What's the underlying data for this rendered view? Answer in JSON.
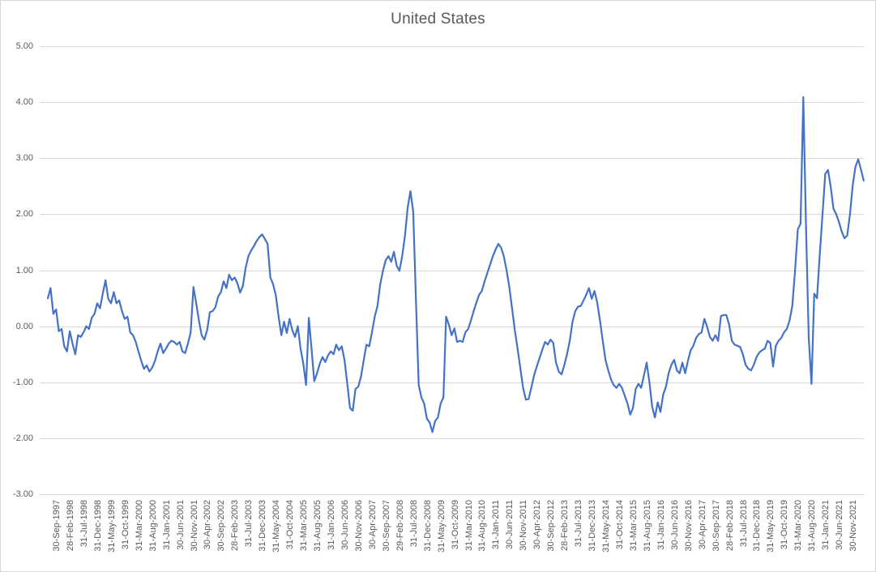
{
  "title": "United States",
  "chart_data": {
    "type": "line",
    "title": "United States",
    "frequency": "monthly",
    "start_month": "Sep-1997",
    "ylim": [
      -3.0,
      5.0
    ],
    "grid": true,
    "legend": "none",
    "line_color": "#4472C4",
    "grid_color": "#D9D9D9",
    "axis_text_color": "#595959",
    "y_ticks": [
      "5.00",
      "4.00",
      "3.00",
      "2.00",
      "1.00",
      "0.00",
      "-1.00",
      "-2.00",
      "-3.00"
    ],
    "y_tick_values": [
      5,
      4,
      3,
      2,
      1,
      0,
      -1,
      -2,
      -3
    ],
    "x_tick_step_months": 5,
    "x_ticks": [
      "30-Sep-1997",
      "28-Feb-1998",
      "31-Jul-1998",
      "31-Dec-1998",
      "31-May-1999",
      "31-Oct-1999",
      "31-Mar-2000",
      "31-Aug-2000",
      "31-Jan-2001",
      "30-Jun-2001",
      "30-Nov-2001",
      "30-Apr-2002",
      "30-Sep-2002",
      "28-Feb-2003",
      "31-Jul-2003",
      "31-Dec-2003",
      "31-May-2004",
      "31-Oct-2004",
      "31-Mar-2005",
      "31-Aug-2005",
      "31-Jan-2006",
      "30-Jun-2006",
      "30-Nov-2006",
      "30-Apr-2007",
      "30-Sep-2007",
      "29-Feb-2008",
      "31-Jul-2008",
      "31-Dec-2008",
      "31-May-2009",
      "31-Oct-2009",
      "31-Mar-2010",
      "31-Aug-2010",
      "31-Jan-2011",
      "30-Jun-2011",
      "30-Nov-2011",
      "30-Apr-2012",
      "30-Sep-2012",
      "28-Feb-2013",
      "31-Jul-2013",
      "31-Dec-2013",
      "31-May-2014",
      "31-Oct-2014",
      "31-Mar-2015",
      "31-Aug-2015",
      "31-Jan-2016",
      "30-Jun-2016",
      "30-Nov-2016",
      "30-Apr-2017",
      "30-Sep-2017",
      "28-Feb-2018",
      "31-Jul-2018",
      "31-Dec-2018",
      "31-May-2019",
      "31-Oct-2019",
      "31-Mar-2020",
      "31-Aug-2020",
      "31-Jan-2021",
      "30-Jun-2021",
      "30-Nov-2021"
    ],
    "values": [
      0.5,
      0.68,
      0.22,
      0.3,
      -0.09,
      -0.05,
      -0.36,
      -0.45,
      -0.09,
      -0.31,
      -0.5,
      -0.16,
      -0.19,
      -0.11,
      0.0,
      -0.05,
      0.15,
      0.22,
      0.41,
      0.32,
      0.58,
      0.82,
      0.49,
      0.41,
      0.61,
      0.41,
      0.46,
      0.27,
      0.13,
      0.17,
      -0.11,
      -0.16,
      -0.28,
      -0.45,
      -0.62,
      -0.76,
      -0.7,
      -0.81,
      -0.74,
      -0.62,
      -0.45,
      -0.31,
      -0.48,
      -0.4,
      -0.31,
      -0.26,
      -0.28,
      -0.33,
      -0.28,
      -0.45,
      -0.48,
      -0.31,
      -0.11,
      0.7,
      0.41,
      0.1,
      -0.16,
      -0.24,
      -0.07,
      0.25,
      0.27,
      0.34,
      0.53,
      0.61,
      0.8,
      0.68,
      0.92,
      0.82,
      0.87,
      0.77,
      0.6,
      0.72,
      1.04,
      1.25,
      1.35,
      1.43,
      1.52,
      1.59,
      1.64,
      1.56,
      1.47,
      0.87,
      0.75,
      0.55,
      0.17,
      -0.16,
      0.08,
      -0.12,
      0.13,
      -0.07,
      -0.19,
      0.0,
      -0.4,
      -0.67,
      -1.05,
      0.15,
      -0.4,
      -0.98,
      -0.84,
      -0.67,
      -0.55,
      -0.64,
      -0.52,
      -0.45,
      -0.5,
      -0.33,
      -0.43,
      -0.36,
      -0.6,
      -1.02,
      -1.46,
      -1.51,
      -1.12,
      -1.08,
      -0.9,
      -0.6,
      -0.33,
      -0.36,
      -0.11,
      0.17,
      0.36,
      0.75,
      0.99,
      1.18,
      1.25,
      1.15,
      1.33,
      1.08,
      0.99,
      1.25,
      1.61,
      2.12,
      2.41,
      2.05,
      0.46,
      -1.05,
      -1.27,
      -1.38,
      -1.65,
      -1.72,
      -1.89,
      -1.69,
      -1.63,
      -1.38,
      -1.27,
      0.17,
      0.03,
      -0.16,
      -0.04,
      -0.28,
      -0.26,
      -0.28,
      -0.11,
      -0.05,
      0.1,
      0.27,
      0.42,
      0.56,
      0.63,
      0.8,
      0.95,
      1.1,
      1.25,
      1.37,
      1.47,
      1.4,
      1.25,
      1.0,
      0.7,
      0.32,
      -0.07,
      -0.4,
      -0.75,
      -1.1,
      -1.31,
      -1.3,
      -1.1,
      -0.88,
      -0.72,
      -0.57,
      -0.42,
      -0.28,
      -0.33,
      -0.24,
      -0.3,
      -0.65,
      -0.81,
      -0.86,
      -0.7,
      -0.5,
      -0.26,
      0.08,
      0.27,
      0.35,
      0.36,
      0.46,
      0.56,
      0.68,
      0.49,
      0.63,
      0.42,
      0.1,
      -0.26,
      -0.6,
      -0.79,
      -0.95,
      -1.05,
      -1.1,
      -1.03,
      -1.1,
      -1.24,
      -1.38,
      -1.58,
      -1.46,
      -1.12,
      -1.03,
      -1.1,
      -0.88,
      -0.65,
      -1.0,
      -1.44,
      -1.63,
      -1.36,
      -1.53,
      -1.22,
      -1.08,
      -0.84,
      -0.69,
      -0.6,
      -0.79,
      -0.84,
      -0.65,
      -0.84,
      -0.62,
      -0.43,
      -0.35,
      -0.21,
      -0.14,
      -0.11,
      0.13,
      -0.01,
      -0.19,
      -0.26,
      -0.16,
      -0.26,
      0.18,
      0.2,
      0.2,
      0.03,
      -0.26,
      -0.33,
      -0.35,
      -0.37,
      -0.5,
      -0.69,
      -0.76,
      -0.79,
      -0.69,
      -0.55,
      -0.47,
      -0.43,
      -0.4,
      -0.26,
      -0.3,
      -0.72,
      -0.35,
      -0.26,
      -0.21,
      -0.11,
      -0.05,
      0.1,
      0.36,
      0.99,
      1.73,
      1.83,
      4.09,
      1.8,
      -0.21,
      -1.03,
      0.58,
      0.5,
      1.28,
      2.0,
      2.72,
      2.79,
      2.48,
      2.1,
      2.0,
      1.86,
      1.69,
      1.57,
      1.62,
      2.0,
      2.52,
      2.85,
      2.98,
      2.8,
      2.6
    ]
  }
}
